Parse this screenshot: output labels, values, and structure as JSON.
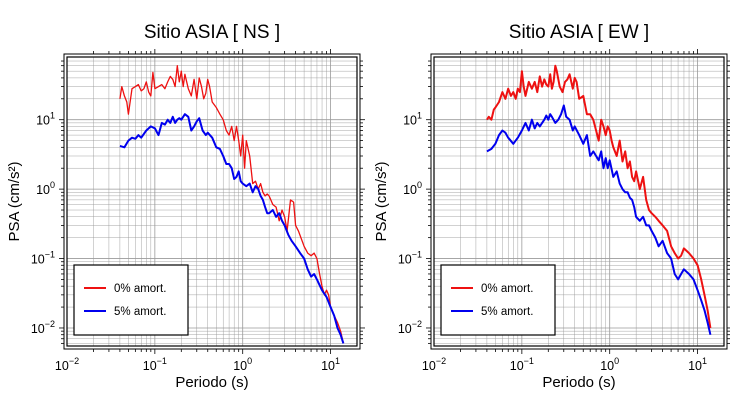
{
  "chart_data": [
    {
      "type": "line",
      "title": "Sitio ASIA [ NS ]",
      "xlabel": "Periodo (s)",
      "ylabel": "PSA (cm/s²)",
      "xscale": "log",
      "yscale": "log",
      "xlim": [
        0.01,
        20
      ],
      "ylim": [
        0.0055,
        80
      ],
      "x_ticks": [
        {
          "value": 0.01,
          "base": "10",
          "exp": "−2"
        },
        {
          "value": 0.1,
          "base": "10",
          "exp": "−1"
        },
        {
          "value": 1,
          "base": "10",
          "exp": "0"
        },
        {
          "value": 10,
          "base": "10",
          "exp": "1"
        }
      ],
      "y_ticks": [
        {
          "value": 0.01,
          "base": "10",
          "exp": "−2"
        },
        {
          "value": 0.1,
          "base": "10",
          "exp": "−1"
        },
        {
          "value": 1,
          "base": "10",
          "exp": "0"
        },
        {
          "value": 10,
          "base": "10",
          "exp": "1"
        }
      ],
      "grid": true,
      "legend_position": "bottom-left",
      "series": [
        {
          "name": "0% amort.",
          "color": "#ee1111",
          "width": 1.3,
          "x": [
            0.04,
            0.042,
            0.045,
            0.048,
            0.05,
            0.055,
            0.06,
            0.065,
            0.07,
            0.075,
            0.08,
            0.085,
            0.09,
            0.095,
            0.1,
            0.11,
            0.12,
            0.13,
            0.14,
            0.15,
            0.16,
            0.17,
            0.18,
            0.19,
            0.2,
            0.21,
            0.22,
            0.24,
            0.26,
            0.28,
            0.3,
            0.32,
            0.34,
            0.36,
            0.38,
            0.4,
            0.42,
            0.45,
            0.5,
            0.55,
            0.6,
            0.65,
            0.7,
            0.75,
            0.8,
            0.85,
            0.9,
            0.95,
            1.0,
            1.05,
            1.1,
            1.2,
            1.3,
            1.4,
            1.5,
            1.6,
            1.7,
            1.8,
            1.9,
            2.0,
            2.2,
            2.4,
            2.6,
            2.8,
            3.0,
            3.2,
            3.5,
            3.8,
            4.0,
            4.3,
            4.6,
            5.0,
            5.5,
            6.0,
            6.5,
            7.0,
            7.5,
            8.0,
            8.5,
            9.0,
            9.5,
            10.0,
            11.0,
            12.0,
            13.0,
            14.0
          ],
          "y": [
            20,
            30,
            22,
            18,
            12,
            28,
            30,
            32,
            26,
            28,
            35,
            25,
            22,
            48,
            28,
            30,
            32,
            28,
            35,
            42,
            38,
            30,
            60,
            35,
            50,
            30,
            45,
            28,
            22,
            38,
            20,
            40,
            30,
            20,
            24,
            38,
            30,
            18,
            15,
            12,
            10,
            7,
            6,
            8,
            5,
            8,
            5,
            3,
            6,
            2,
            5,
            3,
            1.2,
            1.3,
            1.0,
            1.2,
            0.9,
            0.8,
            0.85,
            0.8,
            0.6,
            0.55,
            0.35,
            0.5,
            0.4,
            0.25,
            0.7,
            0.65,
            0.3,
            0.25,
            0.2,
            0.15,
            0.12,
            0.11,
            0.12,
            0.1,
            0.06,
            0.04,
            0.03,
            0.035,
            0.03,
            0.02,
            0.015,
            0.012,
            0.009,
            0.006
          ]
        },
        {
          "name": "5% amort.",
          "color": "#0000ee",
          "width": 2,
          "x": [
            0.04,
            0.045,
            0.05,
            0.055,
            0.06,
            0.065,
            0.07,
            0.08,
            0.09,
            0.1,
            0.11,
            0.12,
            0.13,
            0.14,
            0.15,
            0.16,
            0.17,
            0.18,
            0.19,
            0.2,
            0.22,
            0.24,
            0.26,
            0.28,
            0.3,
            0.32,
            0.35,
            0.38,
            0.4,
            0.45,
            0.5,
            0.55,
            0.6,
            0.65,
            0.7,
            0.75,
            0.8,
            0.85,
            0.9,
            0.95,
            1.0,
            1.1,
            1.2,
            1.3,
            1.4,
            1.5,
            1.6,
            1.7,
            1.8,
            1.9,
            2.0,
            2.2,
            2.4,
            2.6,
            2.8,
            3.0,
            3.3,
            3.6,
            4.0,
            4.5,
            5.0,
            5.5,
            6.0,
            6.5,
            7.0,
            8.0,
            9.0,
            10.0,
            11.0,
            12.0,
            13.0,
            14.0
          ],
          "y": [
            4.2,
            4.0,
            5.0,
            5.5,
            5.3,
            6.0,
            5.5,
            7.0,
            8.0,
            7.5,
            6.0,
            9.0,
            8.5,
            10.0,
            9.0,
            11.0,
            9.0,
            10.0,
            10.5,
            10.0,
            12.0,
            11.0,
            7.0,
            8.0,
            9.5,
            10.5,
            7.0,
            6.0,
            6.5,
            5.5,
            4.0,
            3.8,
            3.0,
            2.3,
            2.3,
            2.0,
            1.4,
            1.5,
            1.8,
            1.3,
            1.2,
            1.1,
            1.2,
            0.9,
            1.1,
            1.0,
            0.8,
            0.7,
            0.55,
            0.45,
            0.45,
            0.5,
            0.4,
            0.45,
            0.35,
            0.3,
            0.22,
            0.18,
            0.15,
            0.12,
            0.1,
            0.07,
            0.055,
            0.06,
            0.05,
            0.035,
            0.028,
            0.02,
            0.015,
            0.01,
            0.008,
            0.006
          ]
        }
      ],
      "legend": [
        {
          "label": "0% amort.",
          "color": "#ee1111"
        },
        {
          "label": "5% amort.",
          "color": "#0000ee"
        }
      ]
    },
    {
      "type": "line",
      "title": "Sitio ASIA [ EW ]",
      "xlabel": "Periodo (s)",
      "ylabel": "PSA (cm/s²)",
      "xscale": "log",
      "yscale": "log",
      "xlim": [
        0.01,
        20
      ],
      "ylim": [
        0.0055,
        80
      ],
      "x_ticks": [
        {
          "value": 0.01,
          "base": "10",
          "exp": "−2"
        },
        {
          "value": 0.1,
          "base": "10",
          "exp": "−1"
        },
        {
          "value": 1,
          "base": "10",
          "exp": "0"
        },
        {
          "value": 10,
          "base": "10",
          "exp": "1"
        }
      ],
      "y_ticks": [
        {
          "value": 0.01,
          "base": "10",
          "exp": "−2"
        },
        {
          "value": 0.1,
          "base": "10",
          "exp": "−1"
        },
        {
          "value": 1,
          "base": "10",
          "exp": "0"
        },
        {
          "value": 10,
          "base": "10",
          "exp": "1"
        }
      ],
      "grid": true,
      "legend_position": "bottom-left",
      "series": [
        {
          "name": "0% amort.",
          "color": "#ee1111",
          "width": 2,
          "x": [
            0.04,
            0.042,
            0.045,
            0.048,
            0.05,
            0.055,
            0.06,
            0.065,
            0.07,
            0.075,
            0.08,
            0.085,
            0.09,
            0.095,
            0.1,
            0.105,
            0.11,
            0.12,
            0.13,
            0.14,
            0.15,
            0.16,
            0.17,
            0.18,
            0.19,
            0.2,
            0.21,
            0.22,
            0.23,
            0.24,
            0.25,
            0.27,
            0.29,
            0.31,
            0.33,
            0.35,
            0.38,
            0.4,
            0.42,
            0.45,
            0.5,
            0.55,
            0.6,
            0.65,
            0.7,
            0.75,
            0.8,
            0.85,
            0.9,
            0.95,
            1.0,
            1.05,
            1.1,
            1.2,
            1.3,
            1.4,
            1.5,
            1.6,
            1.7,
            1.8,
            1.9,
            2.0,
            2.2,
            2.4,
            2.6,
            2.8,
            3.0,
            3.3,
            3.6,
            4.0,
            4.5,
            5.0,
            5.5,
            6.0,
            6.5,
            7.0,
            8.0,
            9.0,
            10.0,
            11.0,
            12.0,
            13.0,
            14.0
          ],
          "y": [
            10,
            11,
            10,
            14,
            15,
            18,
            25,
            20,
            28,
            22,
            25,
            20,
            28,
            25,
            50,
            30,
            22,
            35,
            28,
            35,
            25,
            42,
            30,
            38,
            32,
            30,
            45,
            28,
            35,
            60,
            50,
            30,
            25,
            35,
            38,
            45,
            28,
            40,
            35,
            20,
            22,
            12,
            12,
            10,
            7,
            5,
            10,
            8,
            6,
            8,
            7,
            5,
            4,
            3,
            5,
            2.5,
            3.5,
            2,
            2.5,
            1.5,
            1.3,
            1.8,
            1.0,
            1.5,
            0.7,
            0.5,
            0.45,
            0.4,
            0.35,
            0.3,
            0.25,
            0.15,
            0.12,
            0.1,
            0.11,
            0.14,
            0.12,
            0.1,
            0.08,
            0.05,
            0.03,
            0.018,
            0.01
          ]
        },
        {
          "name": "5% amort.",
          "color": "#0000ee",
          "width": 2,
          "x": [
            0.04,
            0.045,
            0.05,
            0.055,
            0.06,
            0.065,
            0.07,
            0.08,
            0.09,
            0.1,
            0.11,
            0.12,
            0.13,
            0.14,
            0.15,
            0.16,
            0.17,
            0.18,
            0.19,
            0.2,
            0.21,
            0.22,
            0.24,
            0.26,
            0.28,
            0.3,
            0.32,
            0.35,
            0.38,
            0.4,
            0.45,
            0.5,
            0.55,
            0.6,
            0.65,
            0.7,
            0.75,
            0.8,
            0.85,
            0.9,
            0.95,
            1.0,
            1.1,
            1.2,
            1.3,
            1.4,
            1.5,
            1.6,
            1.7,
            1.8,
            1.9,
            2.0,
            2.2,
            2.4,
            2.6,
            2.8,
            3.0,
            3.3,
            3.6,
            4.0,
            4.5,
            5.0,
            5.5,
            6.0,
            6.5,
            7.0,
            8.0,
            9.0,
            10.0,
            11.0,
            12.0,
            13.0,
            14.0
          ],
          "y": [
            3.5,
            3.8,
            4.5,
            6.0,
            7.0,
            6.5,
            5.5,
            4.5,
            5.5,
            7.0,
            9.0,
            7.0,
            10.0,
            7.5,
            9.0,
            8.0,
            9.0,
            10.0,
            11.5,
            10.0,
            12.0,
            11.0,
            9.0,
            10.0,
            12.0,
            16.0,
            11.0,
            10.0,
            7.0,
            8.0,
            6.0,
            4.5,
            6.0,
            3.0,
            3.5,
            3.0,
            2.6,
            3.5,
            2.0,
            2.8,
            2.0,
            2.6,
            1.5,
            1.8,
            1.2,
            1.0,
            0.9,
            0.9,
            0.75,
            0.7,
            0.55,
            0.4,
            0.35,
            0.4,
            0.3,
            0.3,
            0.25,
            0.2,
            0.15,
            0.18,
            0.12,
            0.1,
            0.06,
            0.05,
            0.06,
            0.07,
            0.06,
            0.05,
            0.035,
            0.025,
            0.018,
            0.012,
            0.008
          ]
        }
      ],
      "legend": [
        {
          "label": "0% amort.",
          "color": "#ee1111"
        },
        {
          "label": "5% amort.",
          "color": "#0000ee"
        }
      ]
    }
  ]
}
